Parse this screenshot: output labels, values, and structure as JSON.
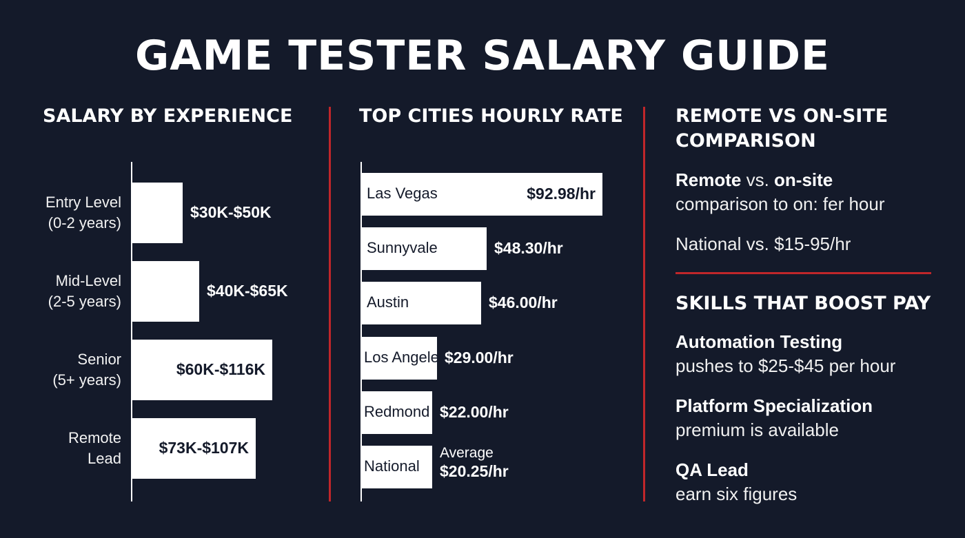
{
  "title": "GAME TESTER SALARY GUIDE",
  "colors": {
    "background": "#141a2a",
    "bar": "#ffffff",
    "accent": "#c0262a",
    "text": "#ffffff"
  },
  "chart_data": [
    {
      "type": "bar",
      "orientation": "horizontal",
      "title": "SALARY BY EXPERIENCE",
      "categories": [
        [
          "Entry Level",
          "(0-2 years)"
        ],
        [
          "Mid-Level",
          "(2-5 years)"
        ],
        [
          "Senior",
          "(5+ years)"
        ],
        [
          "Remote",
          "Lead"
        ]
      ],
      "value_labels": [
        "$30K-$50K",
        "$40K-$65K",
        "$60K-$116K",
        "$73K-$107K"
      ],
      "ranges_k": [
        [
          30,
          50
        ],
        [
          40,
          65
        ],
        [
          60,
          116
        ],
        [
          73,
          107
        ]
      ],
      "bar_lengths_relative": [
        0.36,
        0.48,
        1.0,
        0.88
      ]
    },
    {
      "type": "bar",
      "orientation": "horizontal",
      "title": "TOP CITIES HOURLY RATE",
      "categories": [
        "Las Vegas",
        "Sunnyvale",
        "Austin",
        "Los Angeles",
        "Redmond",
        "National"
      ],
      "values": [
        92.98,
        48.3,
        46.0,
        29.0,
        22.0,
        20.25
      ],
      "value_labels": [
        "$92.98/hr",
        "$48.30/hr",
        "$46.00/hr",
        "$29.00/hr",
        "$22.00/hr",
        "$20.25/hr"
      ],
      "note": "Average",
      "note_index": 5
    }
  ],
  "comparison": {
    "title_line1": "REMOTE VS ON-SITE",
    "title_line2": "COMPARISON",
    "l1_a": "Remote",
    "l1_b": " vs. ",
    "l1_c": "on-site",
    "l2": "comparison to on: fer hour",
    "l3": "National vs.  $15-95/hr"
  },
  "skills": {
    "title": "SKILLS THAT BOOST PAY",
    "items": [
      {
        "name": "Automation Testing",
        "desc": "pushes to $25-$45 per hour"
      },
      {
        "name": "Platform Specialization",
        "desc": "premium is available"
      },
      {
        "name": "QA Lead",
        "desc": "earn six figures"
      }
    ]
  }
}
